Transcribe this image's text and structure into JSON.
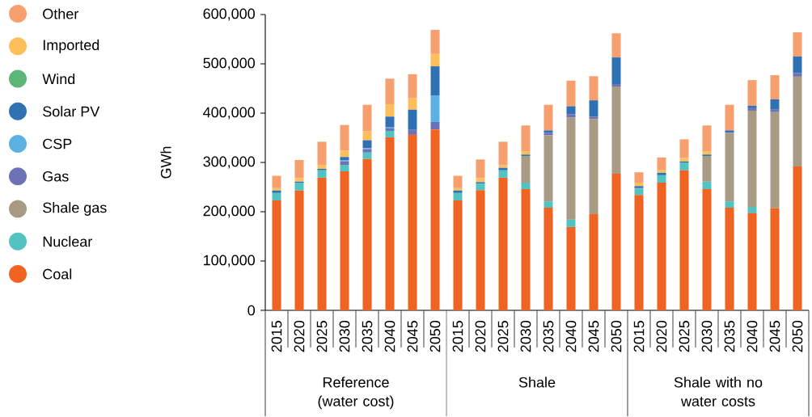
{
  "chart_data": {
    "type": "bar",
    "stacked": true,
    "ylabel": "GWh",
    "categories": [
      "2015",
      "2020",
      "2025",
      "2030",
      "2035",
      "2040",
      "2045",
      "2050",
      "2015",
      "2020",
      "2025",
      "2030",
      "2035",
      "2040",
      "2045",
      "2050",
      "2015",
      "2020",
      "2025",
      "2030",
      "2035",
      "2040",
      "2045",
      "2050"
    ],
    "annotations": [
      "Reference (water cost)",
      "Shale",
      "Shale with no water costs"
    ],
    "ylim": [
      0,
      600000
    ],
    "yticks": [
      {
        "value": 0,
        "label": "0"
      },
      {
        "value": 100000,
        "label": "100,000"
      },
      {
        "value": 200000,
        "label": "200,000"
      },
      {
        "value": 300000,
        "label": "300,000"
      },
      {
        "value": 400000,
        "label": "400,000"
      },
      {
        "value": 500000,
        "label": "500,000"
      },
      {
        "value": 600000,
        "label": "600,000"
      }
    ],
    "legend": "left",
    "series": [
      {
        "name": "Coal",
        "color": "#f26322",
        "values": [
          223000,
          243000,
          269000,
          282000,
          307000,
          351000,
          356000,
          367000,
          223000,
          244000,
          269000,
          246000,
          208000,
          169000,
          195000,
          277000,
          234000,
          259000,
          284000,
          246000,
          208000,
          197000,
          207000,
          292000
        ]
      },
      {
        "name": "Nuclear",
        "color": "#52c3c0",
        "values": [
          15000,
          15000,
          15000,
          13000,
          13000,
          13000,
          0,
          0,
          15000,
          13000,
          15000,
          13000,
          13000,
          15000,
          0,
          0,
          13000,
          15000,
          15000,
          15000,
          13000,
          13000,
          0,
          0
        ]
      },
      {
        "name": "Shale gas",
        "color": "#a99a83",
        "values": [
          0,
          0,
          0,
          0,
          0,
          0,
          0,
          0,
          0,
          0,
          0,
          54000,
          134000,
          207000,
          193000,
          177000,
          0,
          0,
          0,
          52000,
          139000,
          195000,
          195000,
          182000
        ]
      },
      {
        "name": "Gas",
        "color": "#6c72b3",
        "values": [
          0,
          0,
          0,
          7000,
          7000,
          5000,
          10000,
          15000,
          0,
          0,
          0,
          0,
          5000,
          7000,
          5000,
          5000,
          2000,
          0,
          0,
          0,
          0,
          5000,
          5000,
          7000
        ]
      },
      {
        "name": "CSP",
        "color": "#5bb1e2",
        "values": [
          0,
          0,
          0,
          2000,
          2000,
          2000,
          0,
          54000,
          0,
          0,
          0,
          0,
          0,
          0,
          0,
          0,
          0,
          0,
          0,
          0,
          0,
          0,
          0,
          0
        ]
      },
      {
        "name": "Solar PV",
        "color": "#3071b4",
        "values": [
          5000,
          3000,
          3000,
          7000,
          16000,
          22000,
          41000,
          59000,
          5000,
          3000,
          5000,
          3000,
          5000,
          16000,
          33000,
          54000,
          3000,
          5000,
          3000,
          3000,
          5000,
          5000,
          21000,
          34000
        ]
      },
      {
        "name": "Wind",
        "color": "#5bb677",
        "values": [
          0,
          0,
          0,
          0,
          0,
          0,
          0,
          0,
          0,
          0,
          0,
          0,
          0,
          0,
          0,
          0,
          0,
          0,
          0,
          0,
          0,
          0,
          0,
          0
        ]
      },
      {
        "name": "Imported",
        "color": "#fdbf5a",
        "values": [
          5000,
          7000,
          7000,
          13000,
          18000,
          25000,
          23000,
          25000,
          5000,
          8000,
          5000,
          7000,
          0,
          0,
          0,
          0,
          7000,
          5000,
          7000,
          7000,
          0,
          0,
          0,
          0
        ]
      },
      {
        "name": "Other",
        "color": "#f89f6f",
        "values": [
          25000,
          37000,
          48000,
          52000,
          54000,
          52000,
          49000,
          49000,
          25000,
          38000,
          48000,
          52000,
          52000,
          52000,
          49000,
          49000,
          21000,
          26000,
          38000,
          52000,
          52000,
          52000,
          49000,
          49000
        ]
      }
    ]
  }
}
